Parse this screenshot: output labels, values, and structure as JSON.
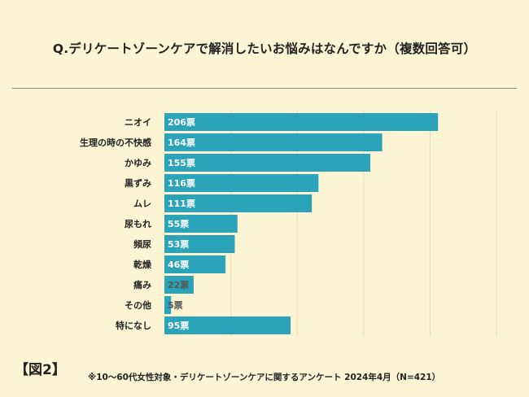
{
  "title": "Q.デリケートゾーンケアで解消したいお悩みはなんですか（複数回答可）",
  "figure_label": "【図2】",
  "footnote": "※10〜60代女性対象・デリケートゾーンケアに関するアンケート 2024年4月（N=421）",
  "colors": {
    "background": "#fcf4d2",
    "bar": "#2ba3b8",
    "grid": "#e6dcb4"
  },
  "chart_data": {
    "type": "bar",
    "orientation": "horizontal",
    "categories": [
      "ニオイ",
      "生理の時の不快感",
      "かゆみ",
      "黒ずみ",
      "ムレ",
      "尿もれ",
      "頻尿",
      "乾燥",
      "痛み",
      "その他",
      "特になし"
    ],
    "values": [
      206,
      164,
      155,
      116,
      111,
      55,
      53,
      46,
      22,
      5,
      95
    ],
    "value_suffix": "票",
    "xlim": [
      0,
      250
    ],
    "grid": true,
    "xlabel": "",
    "ylabel": ""
  }
}
